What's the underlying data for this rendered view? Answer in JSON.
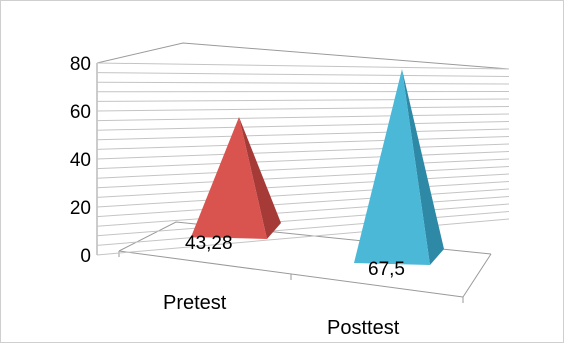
{
  "chart_data": {
    "type": "bar",
    "shape": "pyramid-3d",
    "categories": [
      "Pretest",
      "Posttest"
    ],
    "series": [
      {
        "values": [
          43.28,
          67.5
        ]
      }
    ],
    "data_labels": [
      "43,28",
      "67,5"
    ],
    "y_ticks": [
      "0",
      "20",
      "40",
      "60",
      "80"
    ],
    "ylim": [
      0,
      80
    ],
    "title": "",
    "xlabel": "",
    "ylabel": "",
    "grid": true,
    "legend": "none",
    "colors": [
      "#d9534f",
      "#4bb8d8"
    ]
  }
}
